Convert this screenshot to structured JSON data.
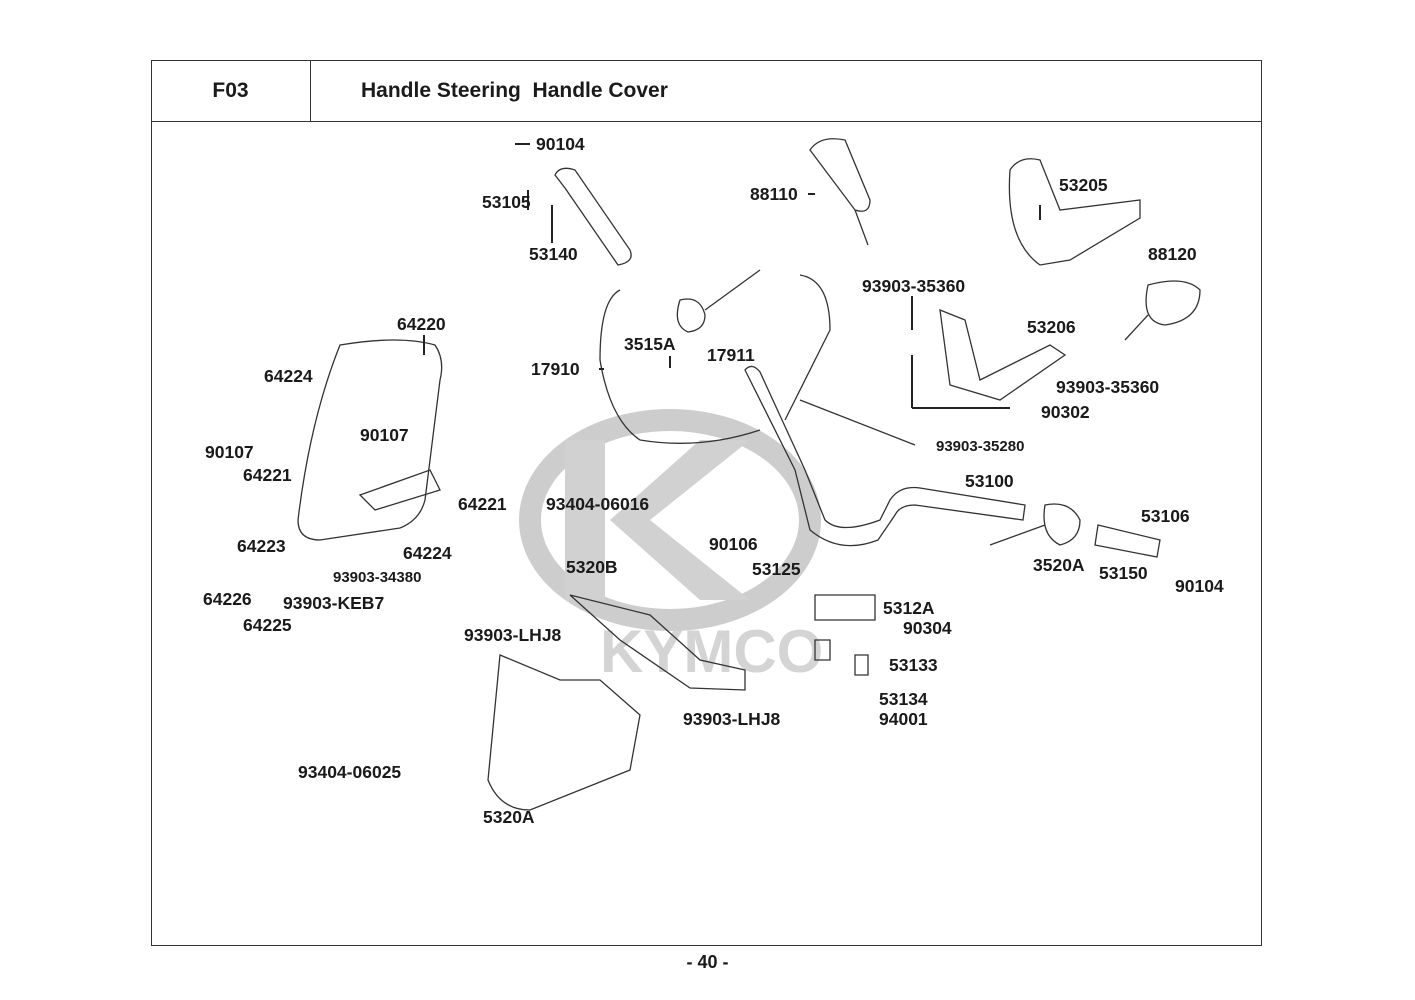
{
  "header": {
    "code": "F03",
    "title": "Handle Steering  Handle Cover"
  },
  "page_number": "- 40 -",
  "watermark": {
    "logo_text": "KYMCO",
    "color": "#c8c8c8"
  },
  "labels": [
    "90104",
    "53105",
    "53140",
    "88110",
    "53205",
    "88120",
    "93903-35360",
    "53206",
    "3515A",
    "17911",
    "17910",
    "93903-35360",
    "90302",
    "93903-35280",
    "64220",
    "64224",
    "90107",
    "64221",
    "90107",
    "53100",
    "93404-06016",
    "64221",
    "53106",
    "64224",
    "90106",
    "64223",
    "53125",
    "5320B",
    "3520A",
    "53150",
    "93903-34380",
    "90104",
    "64226",
    "93903-KEB7",
    "5312A",
    "64225",
    "90304",
    "93903-LHJ8",
    "53133",
    "53134",
    "94001",
    "93903-LHJ8",
    "93404-06025",
    "5320A"
  ]
}
